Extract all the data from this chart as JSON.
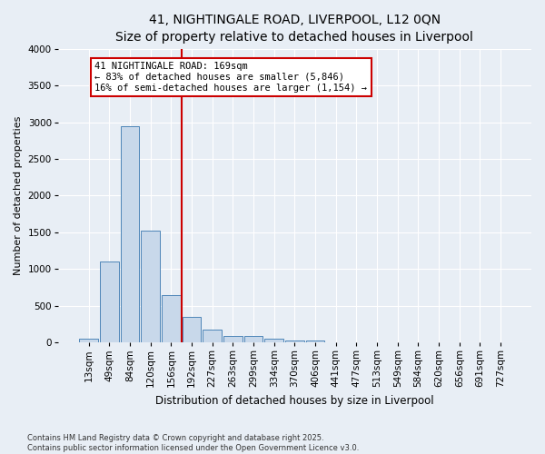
{
  "title": "41, NIGHTINGALE ROAD, LIVERPOOL, L12 0QN",
  "subtitle": "Size of property relative to detached houses in Liverpool",
  "xlabel": "Distribution of detached houses by size in Liverpool",
  "ylabel": "Number of detached properties",
  "bin_labels": [
    "13sqm",
    "49sqm",
    "84sqm",
    "120sqm",
    "156sqm",
    "192sqm",
    "227sqm",
    "263sqm",
    "299sqm",
    "334sqm",
    "370sqm",
    "406sqm",
    "441sqm",
    "477sqm",
    "513sqm",
    "549sqm",
    "584sqm",
    "620sqm",
    "656sqm",
    "691sqm",
    "727sqm"
  ],
  "bar_heights": [
    50,
    1100,
    2950,
    1520,
    650,
    350,
    175,
    85,
    85,
    55,
    30,
    30,
    0,
    0,
    0,
    0,
    0,
    0,
    0,
    0,
    0
  ],
  "bar_color": "#c8d8ea",
  "bar_edge_color": "#4e86b8",
  "vline_x": 4.5,
  "vline_color": "#cc0000",
  "annotation_text": "41 NIGHTINGALE ROAD: 169sqm\n← 83% of detached houses are smaller (5,846)\n16% of semi-detached houses are larger (1,154) →",
  "annotation_box_fc": "#ffffff",
  "annotation_box_ec": "#cc0000",
  "ylim": [
    0,
    4000
  ],
  "yticks": [
    0,
    500,
    1000,
    1500,
    2000,
    2500,
    3000,
    3500,
    4000
  ],
  "footnote1": "Contains HM Land Registry data © Crown copyright and database right 2025.",
  "footnote2": "Contains public sector information licensed under the Open Government Licence v3.0.",
  "bg_color": "#e8eef5",
  "grid_color": "#ffffff",
  "title_fontsize": 10,
  "subtitle_fontsize": 9,
  "ylabel_fontsize": 8,
  "xlabel_fontsize": 8.5,
  "tick_fontsize": 7.5,
  "annot_fontsize": 7.5
}
